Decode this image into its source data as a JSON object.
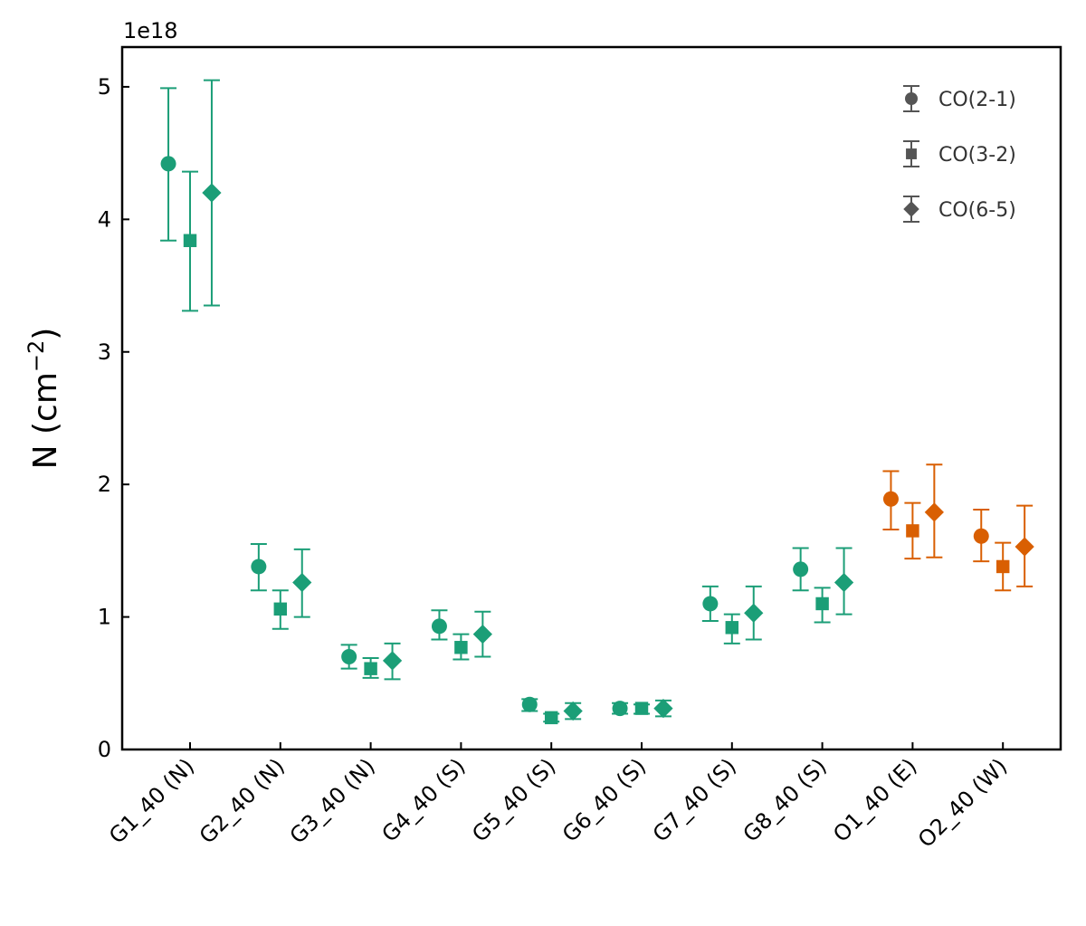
{
  "chart_data": {
    "type": "scatter",
    "title": "",
    "xlabel": "",
    "ylabel": "N (cm",
    "ylabel_exponent": "−2",
    "ylabel_suffix": ")",
    "y_offset_text": "1e18",
    "ylim": [
      0,
      5.3
    ],
    "y_ticks": [
      0,
      1,
      2,
      3,
      4,
      5
    ],
    "y_tick_labels": [
      "0",
      "1",
      "2",
      "3",
      "4",
      "5"
    ],
    "categories": [
      "G1_40 (N)",
      "G2_40 (N)",
      "G3_40 (N)",
      "G4_40 (S)",
      "G5_40 (S)",
      "G6_40 (S)",
      "G7_40 (S)",
      "G8_40 (S)",
      "O1_40 (E)",
      "O2_40 (W)"
    ],
    "category_colors": [
      "#1b9e77",
      "#1b9e77",
      "#1b9e77",
      "#1b9e77",
      "#1b9e77",
      "#1b9e77",
      "#1b9e77",
      "#1b9e77",
      "#d95f02",
      "#d95f02"
    ],
    "series": [
      {
        "name": "CO(2-1)",
        "marker": "circle",
        "offset": -0.24,
        "values": [
          4.42,
          1.38,
          0.7,
          0.93,
          0.34,
          0.31,
          1.1,
          1.36,
          1.89,
          1.61
        ],
        "err_low": [
          3.84,
          1.2,
          0.61,
          0.83,
          0.29,
          0.27,
          0.97,
          1.2,
          1.66,
          1.42
        ],
        "err_high": [
          4.99,
          1.55,
          0.79,
          1.05,
          0.38,
          0.35,
          1.23,
          1.52,
          2.1,
          1.81
        ]
      },
      {
        "name": "CO(3-2)",
        "marker": "square",
        "offset": 0,
        "values": [
          3.84,
          1.06,
          0.61,
          0.77,
          0.24,
          0.31,
          0.92,
          1.1,
          1.65,
          1.38
        ],
        "err_low": [
          3.31,
          0.91,
          0.54,
          0.68,
          0.21,
          0.27,
          0.8,
          0.96,
          1.44,
          1.2
        ],
        "err_high": [
          4.36,
          1.2,
          0.69,
          0.87,
          0.27,
          0.34,
          1.02,
          1.22,
          1.86,
          1.56
        ]
      },
      {
        "name": "CO(6-5)",
        "marker": "diamond",
        "offset": 0.24,
        "values": [
          4.2,
          1.26,
          0.67,
          0.87,
          0.29,
          0.31,
          1.03,
          1.26,
          1.79,
          1.53
        ],
        "err_low": [
          3.35,
          1.0,
          0.53,
          0.7,
          0.23,
          0.25,
          0.83,
          1.02,
          1.45,
          1.23
        ],
        "err_high": [
          5.05,
          1.51,
          0.8,
          1.04,
          0.35,
          0.37,
          1.23,
          1.52,
          2.15,
          1.84
        ]
      }
    ],
    "legend": {
      "location": "top-right",
      "entries": [
        "CO(2-1)",
        "CO(3-2)",
        "CO(6-5)"
      ],
      "color": "#555555"
    },
    "grid": false
  }
}
